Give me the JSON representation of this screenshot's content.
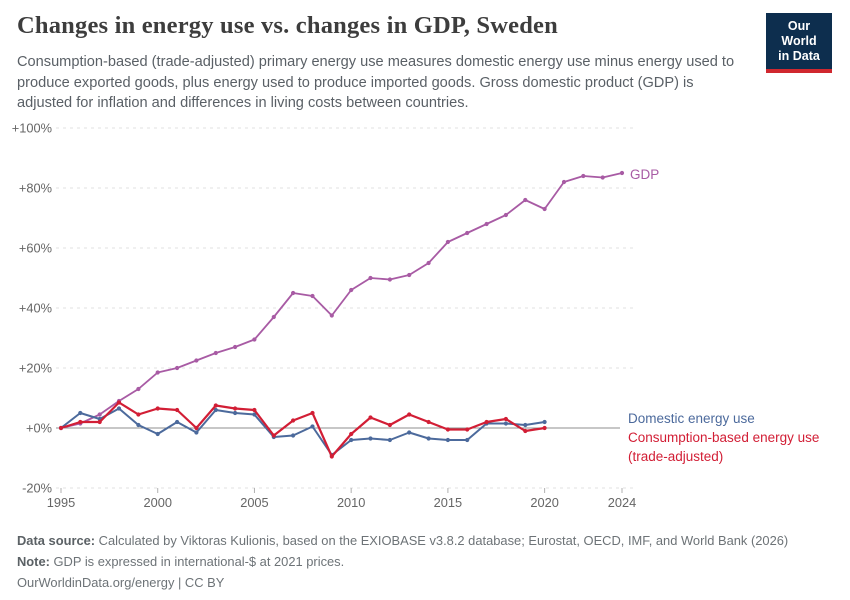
{
  "header": {
    "title": "Changes in energy use vs. changes in GDP, Sweden",
    "subtitle": "Consumption-based (trade-adjusted) primary energy use measures domestic energy use minus energy used to produce exported goods, plus energy used to produce imported goods. Gross domestic product (GDP) is adjusted for inflation and differences in living costs between countries.",
    "logo": {
      "line1": "Our World",
      "line2": "in Data",
      "bg_color": "#0d2e4e",
      "accent_color": "#d0282f"
    }
  },
  "chart_data": {
    "type": "line",
    "title": "Changes in energy use vs. changes in GDP, Sweden",
    "xlabel": "",
    "ylabel": "",
    "xlim": [
      1995,
      2024
    ],
    "ylim": [
      -20,
      100
    ],
    "grid": "horizontal-dashed",
    "legend_position": "line-end-labels",
    "yticks": [
      {
        "v": 100,
        "label": "+100%"
      },
      {
        "v": 80,
        "label": "+80%"
      },
      {
        "v": 60,
        "label": "+60%"
      },
      {
        "v": 40,
        "label": "+40%"
      },
      {
        "v": 20,
        "label": "+20%"
      },
      {
        "v": 0,
        "label": "+0%"
      },
      {
        "v": -20,
        "label": "-20%"
      }
    ],
    "xticks": [
      {
        "v": 1995,
        "label": "1995"
      },
      {
        "v": 2000,
        "label": "2000"
      },
      {
        "v": 2005,
        "label": "2005"
      },
      {
        "v": 2010,
        "label": "2010"
      },
      {
        "v": 2015,
        "label": "2015"
      },
      {
        "v": 2020,
        "label": "2020"
      },
      {
        "v": 2024,
        "label": "2024"
      }
    ],
    "series": [
      {
        "name": "GDP",
        "color": "#a85ba4",
        "stroke_width": 1.8,
        "years": [
          1995,
          1996,
          1997,
          1998,
          1999,
          2000,
          2001,
          2002,
          2003,
          2004,
          2005,
          2006,
          2007,
          2008,
          2009,
          2010,
          2011,
          2012,
          2013,
          2014,
          2015,
          2016,
          2017,
          2018,
          2019,
          2020,
          2021,
          2022,
          2023,
          2024
        ],
        "values": [
          0,
          1.5,
          4.5,
          9,
          13,
          18.5,
          20,
          22.5,
          25,
          27,
          29.5,
          37,
          45,
          44,
          37.5,
          46,
          50,
          49.5,
          51,
          55,
          62,
          65,
          68,
          71,
          76,
          73,
          82,
          84,
          83.5,
          85
        ]
      },
      {
        "name": "Domestic energy use",
        "color": "#4c6a9c",
        "stroke_width": 2,
        "years": [
          1995,
          1996,
          1997,
          1998,
          1999,
          2000,
          2001,
          2002,
          2003,
          2004,
          2005,
          2006,
          2007,
          2008,
          2009,
          2010,
          2011,
          2012,
          2013,
          2014,
          2015,
          2016,
          2017,
          2018,
          2019,
          2020
        ],
        "values": [
          0,
          5,
          3,
          6.5,
          1,
          -2,
          2,
          -1.5,
          6,
          5,
          4.5,
          -3,
          -2.5,
          0.5,
          -9,
          -4,
          -3.5,
          -4,
          -1.5,
          -3.5,
          -4,
          -4,
          1.5,
          1.5,
          1,
          2
        ]
      },
      {
        "name": "Consumption-based energy use (trade-adjusted)",
        "color": "#d21e35",
        "stroke_width": 2.2,
        "years": [
          1995,
          1996,
          1997,
          1998,
          1999,
          2000,
          2001,
          2002,
          2003,
          2004,
          2005,
          2006,
          2007,
          2008,
          2009,
          2010,
          2011,
          2012,
          2013,
          2014,
          2015,
          2016,
          2017,
          2018,
          2019,
          2020
        ],
        "values": [
          0,
          2,
          2,
          8.5,
          4.5,
          6.5,
          6,
          0,
          7.5,
          6.5,
          6,
          -2.5,
          2.5,
          5,
          -9.5,
          -2,
          3.5,
          1,
          4.5,
          2,
          -0.5,
          -0.5,
          2,
          3,
          -1,
          0
        ]
      }
    ]
  },
  "annotations": {
    "gdp_label": "GDP",
    "domestic_label": "Domestic energy use",
    "consumption_label": "Consumption-based energy use (trade-adjusted)"
  },
  "footer": {
    "datasource_label": "Data source:",
    "datasource_text": " Calculated by Viktoras Kulionis, based on the EXIOBASE v3.8.2 database; Eurostat, OECD, IMF, and World Bank (2026)",
    "note_label": "Note:",
    "note_text": " GDP is expressed in international-$ at 2021 prices.",
    "link": "OurWorldinData.org/energy | CC BY"
  }
}
